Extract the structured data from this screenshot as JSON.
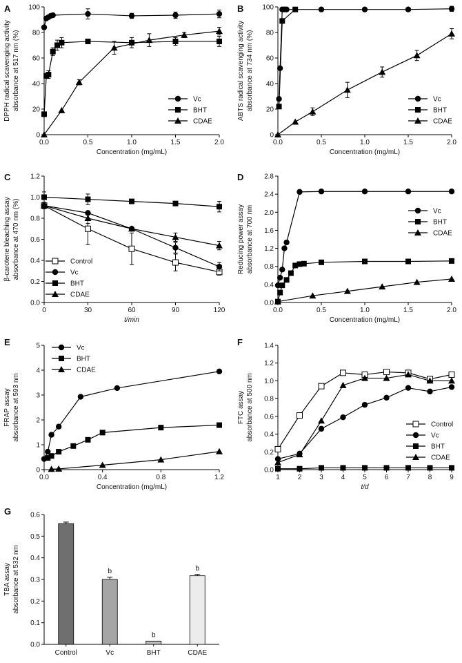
{
  "chart_data": [
    {
      "id": "A",
      "type": "line",
      "panel_label": "A",
      "xlabel": "Concentration (mg/mL)",
      "ylabel": [
        "DPPH radical scavenging activity",
        "absorbance at 517 nm (%)"
      ],
      "xlim": [
        0,
        2.0
      ],
      "ylim": [
        0,
        100
      ],
      "xticks": [
        0,
        0.5,
        1.0,
        1.5,
        2.0
      ],
      "xtick_labels": [
        "0.0",
        "0.5",
        "1.0",
        "1.5",
        "2.0"
      ],
      "yticks": [
        0,
        20,
        40,
        60,
        80,
        100
      ],
      "ytick_labels": [
        "0",
        "20",
        "40",
        "60",
        "80",
        "100"
      ],
      "legend": "bottom-right",
      "series": [
        {
          "name": "Vc",
          "marker": "circle-filled",
          "x": [
            0,
            0.025,
            0.05,
            0.075,
            0.1,
            0.5,
            1.0,
            1.5,
            2.0
          ],
          "y": [
            84,
            91,
            92,
            93,
            93.5,
            94.5,
            93,
            93.5,
            94.5
          ],
          "err": [
            0,
            0,
            0,
            0,
            0,
            4,
            2,
            2.5,
            3
          ]
        },
        {
          "name": "BHT",
          "marker": "square-filled",
          "x": [
            0,
            0.025,
            0.05,
            0.1,
            0.15,
            0.2,
            0.5,
            1.0,
            1.5,
            2.0
          ],
          "y": [
            16,
            46,
            47,
            65,
            70,
            72,
            73,
            72,
            73,
            73
          ],
          "err": [
            0,
            0,
            3,
            3,
            4,
            4,
            0,
            4,
            3,
            4
          ]
        },
        {
          "name": "CDAE",
          "marker": "triangle-filled",
          "x": [
            0,
            0.2,
            0.4,
            0.8,
            1.2,
            1.6,
            2.0
          ],
          "y": [
            0,
            19,
            41,
            68,
            74,
            78,
            81
          ],
          "err": [
            0,
            0,
            2,
            5,
            5,
            2,
            3
          ]
        }
      ]
    },
    {
      "id": "B",
      "type": "line",
      "panel_label": "B",
      "xlabel": "Concentration (mg/mL)",
      "ylabel": [
        "ABTS radical scavenging activity",
        "absorbance at 734 nm (%)"
      ],
      "xlim": [
        0,
        2.0
      ],
      "ylim": [
        0,
        100
      ],
      "xticks": [
        0,
        0.5,
        1.0,
        1.5,
        2.0
      ],
      "xtick_labels": [
        "0.0",
        "0.5",
        "1.0",
        "1.5",
        "2.0"
      ],
      "yticks": [
        0,
        20,
        40,
        60,
        80,
        100
      ],
      "ytick_labels": [
        "0",
        "20",
        "40",
        "60",
        "80",
        "100"
      ],
      "legend": "bottom-right",
      "series": [
        {
          "name": "Vc",
          "marker": "circle-filled",
          "x": [
            0.0125,
            0.025,
            0.05,
            0.075,
            0.1,
            0.5,
            1.0,
            1.5,
            2.0
          ],
          "y": [
            28,
            52,
            98,
            98,
            98,
            98,
            98,
            98,
            98.5
          ],
          "err": [
            0,
            0,
            0,
            0,
            0,
            0,
            0,
            0,
            2
          ]
        },
        {
          "name": "BHT",
          "marker": "square-filled",
          "x": [
            0.0125,
            0.05,
            0.2
          ],
          "y": [
            22,
            89,
            98
          ],
          "err": [
            0,
            0,
            0
          ]
        },
        {
          "name": "CDAE",
          "marker": "triangle-filled",
          "x": [
            0,
            0.2,
            0.4,
            0.8,
            1.2,
            1.6,
            2.0
          ],
          "y": [
            0,
            10,
            18,
            35,
            49,
            62,
            79
          ],
          "err": [
            0,
            0,
            3,
            6,
            4,
            4,
            4
          ]
        }
      ]
    },
    {
      "id": "C",
      "type": "line",
      "panel_label": "C",
      "xlabel": "t/min",
      "ylabel": [
        "β-carotene bleaching assay",
        "absorbance at 470 nm (%)"
      ],
      "xlim": [
        0,
        120
      ],
      "ylim": [
        0,
        1.2
      ],
      "xticks": [
        0,
        30,
        60,
        90,
        120
      ],
      "xtick_labels": [
        "0",
        "30",
        "60",
        "90",
        "120"
      ],
      "yticks": [
        0,
        0.2,
        0.4,
        0.6,
        0.8,
        1.0,
        1.2
      ],
      "ytick_labels": [
        "0.0",
        "0.2",
        "0.4",
        "0.6",
        "0.8",
        "1.0",
        "1.2"
      ],
      "legend": "bottom-left",
      "series": [
        {
          "name": "Control",
          "marker": "square-open",
          "x": [
            0,
            30,
            60,
            90,
            120
          ],
          "y": [
            0.92,
            0.7,
            0.51,
            0.38,
            0.29
          ],
          "err": [
            0.03,
            0.15,
            0.15,
            0.08,
            0.03
          ]
        },
        {
          "name": "Vc",
          "marker": "circle-filled",
          "x": [
            0,
            30,
            60,
            90,
            120
          ],
          "y": [
            0.92,
            0.85,
            0.7,
            0.52,
            0.34
          ],
          "err": [
            0,
            0,
            0,
            0.05,
            0.04
          ]
        },
        {
          "name": "BHT",
          "marker": "square-filled",
          "x": [
            0,
            30,
            60,
            90,
            120
          ],
          "y": [
            1.0,
            0.98,
            0.96,
            0.94,
            0.91
          ],
          "err": [
            0.05,
            0.05,
            0,
            0,
            0.05
          ]
        },
        {
          "name": "CDAE",
          "marker": "triangle-filled",
          "x": [
            0,
            30,
            60,
            90,
            120
          ],
          "y": [
            0.92,
            0.8,
            0.7,
            0.62,
            0.54
          ],
          "err": [
            0,
            0.05,
            0,
            0.04,
            0.04
          ]
        }
      ]
    },
    {
      "id": "D",
      "type": "line",
      "panel_label": "D",
      "xlabel": "Concentration (mg/mL)",
      "ylabel": [
        "Reducing power assay",
        "absorbance at 700 nm"
      ],
      "xlim": [
        0,
        2.0
      ],
      "ylim": [
        0,
        2.8
      ],
      "xticks": [
        0,
        0.5,
        1.0,
        1.5,
        2.0
      ],
      "xtick_labels": [
        "0.0",
        "0.5",
        "1.0",
        "1.5",
        "2.0"
      ],
      "yticks": [
        0,
        0.4,
        0.8,
        1.2,
        1.6,
        2.0,
        2.4,
        2.8
      ],
      "ytick_labels": [
        "0.0",
        "0.4",
        "0.8",
        "1.2",
        "1.6",
        "2.0",
        "2.4",
        "2.8"
      ],
      "legend": "top-right",
      "series": [
        {
          "name": "Vc",
          "marker": "circle-filled",
          "x": [
            0,
            0.025,
            0.05,
            0.075,
            0.1,
            0.25,
            0.5,
            1.0,
            1.5,
            2.0
          ],
          "y": [
            0.38,
            0.55,
            0.73,
            1.2,
            1.33,
            2.45,
            2.46,
            2.46,
            2.46,
            2.46
          ],
          "err": [
            0,
            0,
            0,
            0,
            0,
            0,
            0,
            0,
            0,
            0
          ]
        },
        {
          "name": "BHT",
          "marker": "square-filled",
          "x": [
            0,
            0.025,
            0.05,
            0.1,
            0.15,
            0.2,
            0.25,
            0.3,
            0.5,
            1.0,
            1.5,
            2.0
          ],
          "y": [
            0.02,
            0.22,
            0.38,
            0.5,
            0.65,
            0.82,
            0.85,
            0.86,
            0.89,
            0.91,
            0.91,
            0.92
          ],
          "err": [
            0,
            0,
            0,
            0,
            0,
            0,
            0,
            0,
            0,
            0,
            0,
            0
          ]
        },
        {
          "name": "CDAE",
          "marker": "triangle-filled",
          "x": [
            0,
            0.4,
            0.8,
            1.2,
            1.6,
            2.0
          ],
          "y": [
            0.02,
            0.15,
            0.25,
            0.35,
            0.45,
            0.52
          ],
          "err": [
            0,
            0,
            0,
            0,
            0,
            0
          ]
        }
      ]
    },
    {
      "id": "E",
      "type": "line",
      "panel_label": "E",
      "xlabel": "Concentration (mg/mL)",
      "ylabel": [
        "FRAP assay",
        "absorbance at 593 nm"
      ],
      "xlim": [
        0,
        1.2
      ],
      "ylim": [
        0,
        5
      ],
      "xticks": [
        0,
        0.4,
        0.8,
        1.2
      ],
      "xtick_labels": [
        "0.0",
        "0.4",
        "0.8",
        "1.2"
      ],
      "yticks": [
        0,
        1,
        2,
        3,
        4,
        5
      ],
      "ytick_labels": [
        "0",
        "1",
        "2",
        "3",
        "4",
        "5"
      ],
      "legend": "top-left",
      "series": [
        {
          "name": "Vc",
          "marker": "circle-filled",
          "x": [
            0,
            0.025,
            0.05,
            0.1,
            0.25,
            0.5,
            1.2
          ],
          "y": [
            0.43,
            0.72,
            1.4,
            1.73,
            2.93,
            3.28,
            3.95
          ],
          "err": [
            0,
            0,
            0,
            0,
            0,
            0,
            0
          ]
        },
        {
          "name": "BHT",
          "marker": "square-filled",
          "x": [
            0.025,
            0.05,
            0.1,
            0.2,
            0.3,
            0.4,
            0.8,
            1.2
          ],
          "y": [
            0.47,
            0.55,
            0.72,
            0.95,
            1.2,
            1.49,
            1.69,
            1.79
          ],
          "err": [
            0,
            0,
            0,
            0,
            0,
            0,
            0,
            0
          ]
        },
        {
          "name": "CDAE",
          "marker": "triangle-filled",
          "x": [
            0.05,
            0.1,
            0.4,
            0.8,
            1.2
          ],
          "y": [
            0.02,
            0.03,
            0.18,
            0.4,
            0.73
          ],
          "err": [
            0,
            0,
            0,
            0,
            0
          ]
        }
      ]
    },
    {
      "id": "F",
      "type": "line",
      "panel_label": "F",
      "xlabel": "t/d",
      "ylabel": [
        "FTC assay",
        "absorbance at 500 nm"
      ],
      "xlim": [
        1,
        9
      ],
      "ylim": [
        0,
        1.4
      ],
      "xticks": [
        1,
        2,
        3,
        4,
        5,
        6,
        7,
        8,
        9
      ],
      "xtick_labels": [
        "1",
        "2",
        "3",
        "4",
        "5",
        "6",
        "7",
        "8",
        "9"
      ],
      "yticks": [
        0,
        0.2,
        0.4,
        0.6,
        0.8,
        1.0,
        1.2,
        1.4
      ],
      "ytick_labels": [
        "0.0",
        "0.2",
        "0.4",
        "0.6",
        "0.8",
        "1.0",
        "1.2",
        "1.4"
      ],
      "legend": "bottom-right",
      "series": [
        {
          "name": "Control",
          "marker": "square-open",
          "x": [
            1,
            2,
            3,
            4,
            5,
            6,
            7,
            8,
            9
          ],
          "y": [
            0.23,
            0.61,
            0.94,
            1.09,
            1.07,
            1.1,
            1.09,
            1.02,
            1.07
          ],
          "err": [
            0,
            0,
            0,
            0,
            0,
            0,
            0,
            0,
            0
          ]
        },
        {
          "name": "Vc",
          "marker": "circle-filled",
          "x": [
            1,
            2,
            3,
            4,
            5,
            6,
            7,
            8,
            9
          ],
          "y": [
            0.12,
            0.18,
            0.46,
            0.59,
            0.73,
            0.81,
            0.92,
            0.88,
            0.93
          ],
          "err": [
            0,
            0,
            0,
            0.02,
            0,
            0,
            0,
            0,
            0
          ]
        },
        {
          "name": "BHT",
          "marker": "square-filled",
          "x": [
            1,
            2,
            3,
            4,
            5,
            6,
            7,
            8,
            9
          ],
          "y": [
            0.01,
            0.01,
            0.02,
            0.02,
            0.02,
            0.02,
            0.02,
            0.02,
            0.02
          ],
          "err": [
            0,
            0,
            0,
            0,
            0,
            0,
            0,
            0,
            0
          ]
        },
        {
          "name": "CDAE",
          "marker": "triangle-filled",
          "x": [
            1,
            2,
            3,
            4,
            5,
            6,
            7,
            8,
            9
          ],
          "y": [
            0.08,
            0.17,
            0.55,
            0.95,
            1.03,
            1.03,
            1.07,
            1.0,
            1.0
          ],
          "err": [
            0,
            0,
            0,
            0,
            0,
            0,
            0,
            0,
            0
          ]
        }
      ]
    },
    {
      "id": "G",
      "type": "bar",
      "panel_label": "G",
      "xlabel": "",
      "ylabel": [
        "TBA assay",
        "absorbance at 532 nm"
      ],
      "ylim": [
        0,
        0.6
      ],
      "yticks": [
        0,
        0.1,
        0.2,
        0.3,
        0.4,
        0.5,
        0.6
      ],
      "ytick_labels": [
        "0.0",
        "0.1",
        "0.2",
        "0.3",
        "0.4",
        "0.5",
        "0.6"
      ],
      "categories": [
        "Control",
        "Vc",
        "BHT",
        "CDAE"
      ],
      "values": [
        0.558,
        0.3,
        0.015,
        0.317
      ],
      "err": [
        0.007,
        0.01,
        0,
        0.006
      ],
      "annotations": [
        "",
        "b",
        "b",
        "b"
      ],
      "colors": [
        "#6f6f6f",
        "#a5a5a5",
        "#bdbdbd",
        "#ececec"
      ]
    }
  ]
}
